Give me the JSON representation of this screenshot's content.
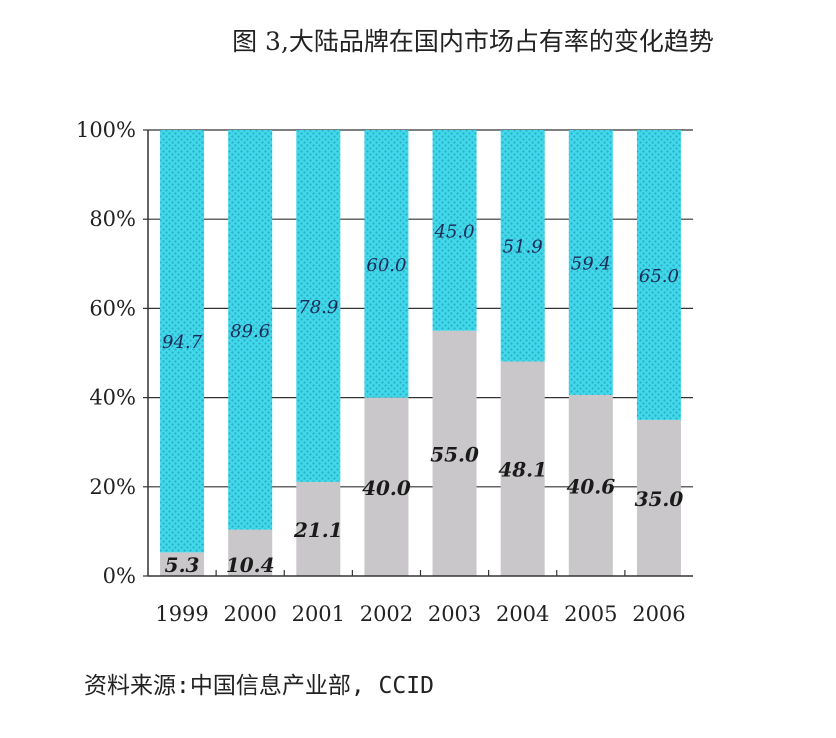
{
  "chart_data": {
    "type": "bar",
    "stacked": true,
    "percent_stacked": true,
    "title": "图 3,大陆品牌在国内市场占有率的变化趋势",
    "source": "资料来源:中国信息产业部, CCID",
    "categories": [
      "1999",
      "2000",
      "2001",
      "2002",
      "2003",
      "2004",
      "2005",
      "2006"
    ],
    "series": [
      {
        "values": [
          5.3,
          10.4,
          21.1,
          40.0,
          55.0,
          48.1,
          40.6,
          35.0
        ],
        "color": "#c9c7c9"
      },
      {
        "values": [
          94.7,
          89.6,
          78.9,
          60.0,
          45.0,
          51.9,
          59.4,
          65.0
        ],
        "color": "#40d8ea"
      }
    ],
    "yticks": [
      "0%",
      "20%",
      "40%",
      "60%",
      "80%",
      "100%"
    ],
    "ylim": [
      0,
      100
    ],
    "grid": true,
    "xlabel": "",
    "ylabel": ""
  }
}
